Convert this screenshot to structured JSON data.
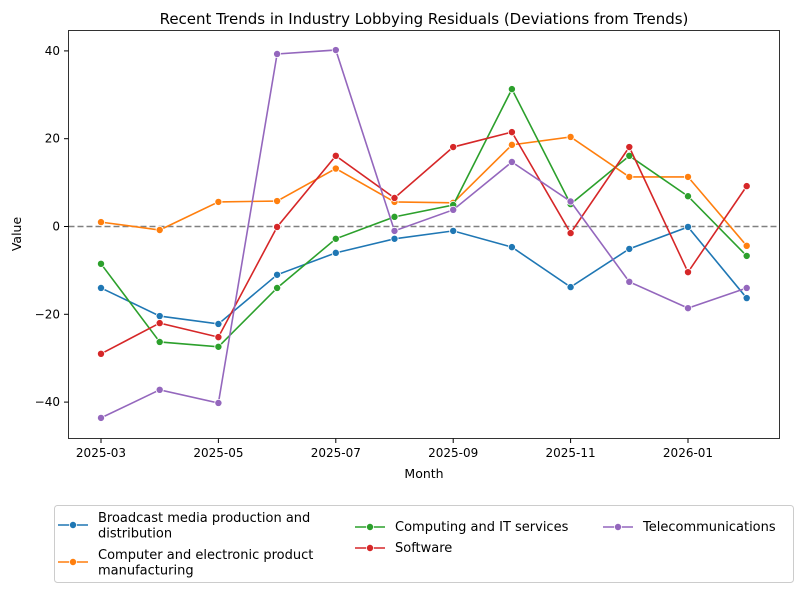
{
  "chart_data": {
    "type": "line",
    "title": "Recent Trends in Industry Lobbying Residuals (Deviations from Trends)",
    "xlabel": "Month",
    "ylabel": "Value",
    "x": [
      "2025-03",
      "2025-04",
      "2025-05",
      "2025-06",
      "2025-07",
      "2025-08",
      "2025-09",
      "2025-10",
      "2025-11",
      "2025-12",
      "2026-01",
      "2026-02"
    ],
    "x_tick_labels": [
      "2025-03",
      "2025-05",
      "2025-07",
      "2025-09",
      "2025-11",
      "2026-01"
    ],
    "y_ticks": [
      -40,
      -20,
      0,
      20,
      40
    ],
    "ylim": [
      -48,
      44
    ],
    "grid": false,
    "reference_line": {
      "y": 0,
      "style": "dashed",
      "color": "#808080"
    },
    "legend_placement": "bottom-center",
    "legend_columns": 3,
    "series": [
      {
        "name": "Broadcast media production and distribution",
        "color": "#1f77b4",
        "values": [
          -14.0,
          -20.4,
          -22.2,
          -11.0,
          -6.0,
          -2.8,
          -1.0,
          -4.7,
          -13.8,
          -5.1,
          -0.1,
          -16.3
        ]
      },
      {
        "name": "Computer and electronic product manufacturing",
        "color": "#ff7f0e",
        "values": [
          1.0,
          -0.8,
          5.6,
          5.8,
          13.2,
          5.6,
          5.4,
          18.6,
          20.4,
          11.3,
          11.3,
          -4.4
        ]
      },
      {
        "name": "Computing and IT services",
        "color": "#2ca02c",
        "values": [
          -8.5,
          -26.3,
          -27.4,
          -14.0,
          -2.8,
          2.2,
          4.9,
          31.3,
          5.1,
          16.1,
          6.9,
          -6.7
        ]
      },
      {
        "name": "Software",
        "color": "#d62728",
        "values": [
          -29.0,
          -22.0,
          -25.2,
          -0.1,
          16.1,
          6.5,
          18.1,
          21.5,
          -1.5,
          18.1,
          -10.4,
          9.2
        ]
      },
      {
        "name": "Telecommunications",
        "color": "#9467bd",
        "values": [
          -43.6,
          -37.2,
          -40.2,
          39.3,
          40.2,
          -1.0,
          3.8,
          14.7,
          5.7,
          -12.6,
          -18.6,
          -14.0
        ]
      }
    ]
  }
}
